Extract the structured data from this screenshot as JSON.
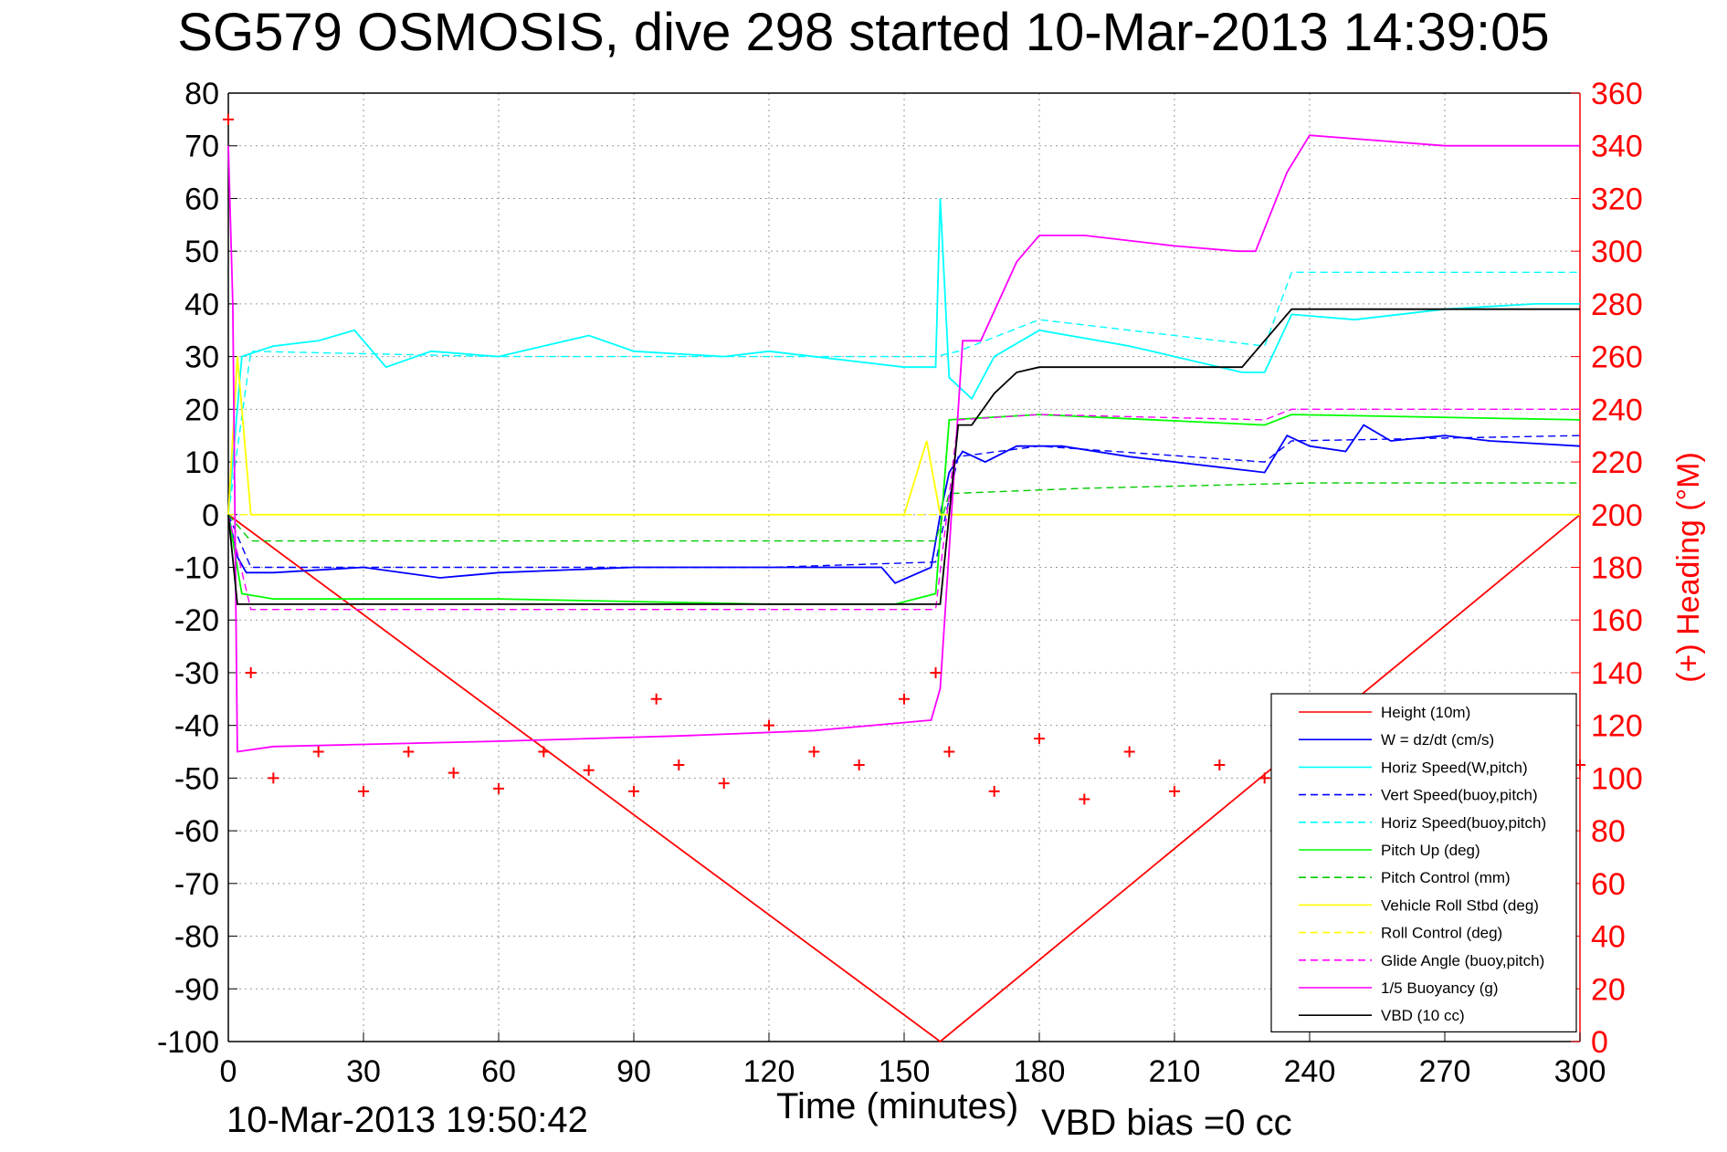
{
  "title": "SG579 OSMOSIS, dive 298 started 10-Mar-2013 14:39:05",
  "footer": {
    "timestamp": "10-Mar-2013 19:50:42",
    "vbd_bias": "VBD bias =0 cc"
  },
  "colors": {
    "height": "#ff0000",
    "w": "#0000ff",
    "horiz_w_pitch": "#00ffff",
    "vert_buoy_pitch": "#0000ff",
    "horiz_buoy_pitch": "#00ffff",
    "pitch_up": "#00ff00",
    "pitch_control": "#00cc00",
    "vehicle_roll": "#ffff00",
    "roll_control": "#ffff00",
    "glide_angle": "#ff00ff",
    "buoyancy": "#ff00ff",
    "vbd": "#000000",
    "heading": "#ff0000"
  },
  "chart_data": {
    "type": "line",
    "xlabel": "Time (minutes)",
    "ylabel_right": "(+) Heading (°M)",
    "xlim": [
      0,
      300
    ],
    "ylim": [
      -100,
      80
    ],
    "ylim_right": [
      0,
      360
    ],
    "xticks": [
      0,
      30,
      60,
      90,
      120,
      150,
      180,
      210,
      240,
      270,
      300
    ],
    "yticks": [
      80,
      70,
      60,
      50,
      40,
      30,
      20,
      10,
      0,
      -10,
      -20,
      -30,
      -40,
      -50,
      -60,
      -70,
      -80,
      -90,
      -100
    ],
    "yticks_right": [
      360,
      340,
      320,
      300,
      280,
      260,
      240,
      220,
      200,
      180,
      160,
      140,
      120,
      100,
      80,
      60,
      40,
      20,
      0
    ],
    "grid": true,
    "legend_position": "bottom-right",
    "series": [
      {
        "name": "Height (10m)",
        "style": "solid",
        "color_key": "height",
        "x": [
          0,
          158,
          300
        ],
        "y": [
          0,
          -100,
          0
        ]
      },
      {
        "name": "W = dz/dt (cm/s)",
        "style": "solid",
        "color_key": "w",
        "x": [
          0,
          2,
          4,
          10,
          30,
          47,
          60,
          90,
          120,
          145,
          148,
          156,
          158,
          160,
          163,
          168,
          175,
          185,
          200,
          220,
          230,
          235,
          240,
          248,
          252,
          258,
          270,
          280,
          300
        ],
        "y": [
          0,
          -8,
          -11,
          -11,
          -10,
          -12,
          -11,
          -10,
          -10,
          -10,
          -13,
          -10,
          0,
          8,
          12,
          10,
          13,
          13,
          11,
          9,
          8,
          15,
          13,
          12,
          17,
          14,
          15,
          14,
          13
        ]
      },
      {
        "name": "Horiz Speed(W,pitch)",
        "style": "solid",
        "color_key": "horiz_w_pitch",
        "x": [
          0,
          3,
          10,
          20,
          28,
          35,
          45,
          60,
          80,
          90,
          110,
          120,
          140,
          150,
          157,
          158,
          160,
          165,
          170,
          180,
          200,
          225,
          230,
          236,
          250,
          270,
          290,
          300
        ],
        "y": [
          0,
          30,
          32,
          33,
          35,
          28,
          31,
          30,
          34,
          31,
          30,
          31,
          29,
          28,
          28,
          60,
          26,
          22,
          30,
          35,
          32,
          27,
          27,
          38,
          37,
          39,
          40,
          40
        ]
      },
      {
        "name": "Vert Speed(buoy,pitch)",
        "style": "dashed",
        "color_key": "vert_buoy_pitch",
        "x": [
          0,
          5,
          60,
          120,
          157,
          162,
          180,
          230,
          236,
          300
        ],
        "y": [
          0,
          -10,
          -10,
          -10,
          -9,
          11,
          13,
          10,
          14,
          15
        ]
      },
      {
        "name": "Horiz Speed(buoy,pitch)",
        "style": "dashed",
        "color_key": "horiz_buoy_pitch",
        "x": [
          0,
          5,
          60,
          120,
          157,
          162,
          180,
          230,
          236,
          300
        ],
        "y": [
          0,
          31,
          30,
          30,
          30,
          31,
          37,
          32,
          46,
          46
        ]
      },
      {
        "name": "Pitch Up (deg)",
        "style": "solid",
        "color_key": "pitch_up",
        "x": [
          0,
          3,
          10,
          60,
          120,
          148,
          157,
          160,
          180,
          230,
          236,
          300
        ],
        "y": [
          0,
          -15,
          -16,
          -16,
          -17,
          -17,
          -15,
          18,
          19,
          17,
          19,
          18
        ]
      },
      {
        "name": "Pitch Control (mm)",
        "style": "dashed",
        "color_key": "pitch_control",
        "x": [
          0,
          5,
          60,
          120,
          157,
          160,
          190,
          240,
          300
        ],
        "y": [
          0,
          -5,
          -5,
          -5,
          -5,
          4,
          5,
          6,
          6
        ]
      },
      {
        "name": "Vehicle Roll Stbd (deg)",
        "style": "solid",
        "color_key": "vehicle_roll",
        "x": [
          0,
          2,
          5,
          30,
          60,
          90,
          120,
          150,
          155,
          158,
          180,
          210,
          240,
          270,
          300
        ],
        "y": [
          0,
          30,
          0,
          0,
          0,
          0,
          0,
          0,
          14,
          0,
          0,
          0,
          0,
          0,
          0
        ]
      },
      {
        "name": "Roll Control (deg)",
        "style": "dashed",
        "color_key": "roll_control",
        "x": [
          0,
          300
        ],
        "y": [
          0,
          0
        ]
      },
      {
        "name": "Glide Angle (buoy,pitch)",
        "style": "dashed",
        "color_key": "glide_angle",
        "x": [
          0,
          5,
          60,
          120,
          157,
          162,
          180,
          230,
          236,
          300
        ],
        "y": [
          0,
          -18,
          -18,
          -18,
          -18,
          18,
          19,
          18,
          20,
          20
        ]
      },
      {
        "name": "1/5 Buoyancy (g)",
        "style": "solid",
        "color_key": "buoyancy",
        "x": [
          0,
          1,
          2,
          10,
          60,
          100,
          130,
          156,
          158,
          163,
          167,
          175,
          180,
          190,
          210,
          224,
          228,
          235,
          240,
          270,
          300
        ],
        "y": [
          70,
          40,
          -45,
          -44,
          -43,
          -42,
          -41,
          -39,
          -33,
          33,
          33,
          48,
          53,
          53,
          51,
          50,
          50,
          65,
          72,
          70,
          70
        ]
      },
      {
        "name": "VBD (10 cc)",
        "style": "solid",
        "color_key": "vbd",
        "x": [
          0,
          2,
          5,
          157,
          158,
          162,
          165,
          170,
          175,
          180,
          225,
          228,
          232,
          236,
          300
        ],
        "y": [
          0,
          -17,
          -17,
          -17,
          -17,
          17,
          17,
          23,
          27,
          28,
          28,
          31,
          35,
          39,
          39
        ]
      },
      {
        "name": "(+) Heading (°M)",
        "style": "markers",
        "color_key": "heading",
        "axis": "right",
        "x": [
          0,
          5,
          10,
          20,
          30,
          40,
          50,
          60,
          70,
          80,
          90,
          95,
          100,
          110,
          120,
          130,
          140,
          150,
          157,
          160,
          170,
          180,
          190,
          200,
          210,
          220,
          230,
          240,
          250,
          260,
          270,
          280,
          290,
          300
        ],
        "y": [
          350,
          140,
          100,
          110,
          95,
          110,
          102,
          96,
          110,
          103,
          95,
          130,
          105,
          98,
          120,
          110,
          105,
          130,
          140,
          110,
          95,
          115,
          92,
          110,
          95,
          105,
          100,
          100,
          110,
          100,
          105,
          95,
          100,
          105
        ]
      }
    ]
  }
}
